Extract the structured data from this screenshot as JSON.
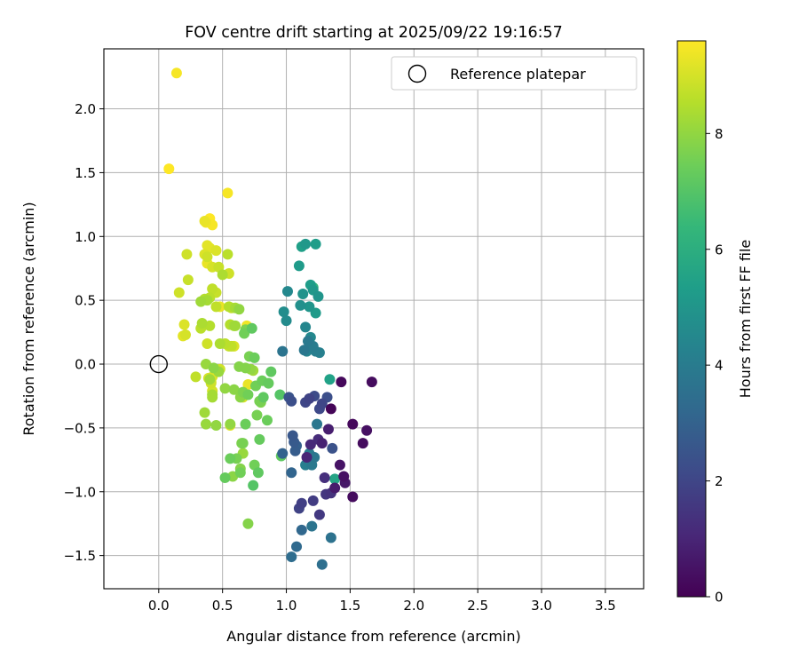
{
  "chart_data": {
    "type": "scatter",
    "title": "FOV centre drift starting at 2025/09/22 19:16:57",
    "xlabel": "Angular distance from reference (arcmin)",
    "ylabel": "Rotation from reference (arcmin)",
    "xlim": [
      -0.43,
      3.8
    ],
    "ylim": [
      -1.76,
      2.47
    ],
    "x_ticks": [
      0.0,
      0.5,
      1.0,
      1.5,
      2.0,
      2.5,
      3.0,
      3.5
    ],
    "x_tick_labels": [
      "0.0",
      "0.5",
      "1.0",
      "1.5",
      "2.0",
      "2.5",
      "3.0",
      "3.5"
    ],
    "y_ticks": [
      -1.5,
      -1.0,
      -0.5,
      0.0,
      0.5,
      1.0,
      1.5,
      2.0
    ],
    "y_tick_labels": [
      "−1.5",
      "−1.0",
      "−0.5",
      "0.0",
      "0.5",
      "1.0",
      "1.5",
      "2.0"
    ],
    "grid": true,
    "legend": {
      "position": "top-right",
      "entries": [
        "Reference platepar"
      ]
    },
    "reference_point": {
      "x": 0.0,
      "y": 0.0
    },
    "colorbar": {
      "label": "Hours from first FF file",
      "min": 0,
      "max": 9.6,
      "ticks": [
        0,
        2,
        4,
        6,
        8
      ],
      "tick_labels": [
        "0",
        "2",
        "4",
        "6",
        "8"
      ],
      "colormap": "viridis",
      "stops": [
        "#440154",
        "#482878",
        "#3e4a89",
        "#31688e",
        "#26828e",
        "#1f9e89",
        "#35b779",
        "#6ece58",
        "#b5de2b",
        "#fde725"
      ]
    },
    "series": [
      {
        "name": "points",
        "points": [
          [
            1.35,
            -0.35,
            0.1
          ],
          [
            1.43,
            -0.14,
            0.2
          ],
          [
            1.67,
            -0.14,
            0.3
          ],
          [
            1.52,
            -0.47,
            0.2
          ],
          [
            1.6,
            -0.62,
            0.3
          ],
          [
            1.63,
            -0.52,
            0.4
          ],
          [
            1.42,
            -0.79,
            0.5
          ],
          [
            1.45,
            -0.88,
            0.4
          ],
          [
            1.46,
            -0.93,
            0.6
          ],
          [
            1.52,
            -1.04,
            0.3
          ],
          [
            1.38,
            -0.97,
            0.7
          ],
          [
            1.33,
            -0.51,
            0.8
          ],
          [
            1.28,
            -0.62,
            0.9
          ],
          [
            1.16,
            -0.73,
            1.0
          ],
          [
            1.19,
            -0.63,
            1.1
          ],
          [
            1.25,
            -0.59,
            1.2
          ],
          [
            1.3,
            -0.89,
            1.3
          ],
          [
            1.35,
            -1.01,
            1.4
          ],
          [
            1.31,
            -1.02,
            1.5
          ],
          [
            1.26,
            -1.18,
            1.6
          ],
          [
            1.21,
            -1.07,
            1.7
          ],
          [
            1.12,
            -1.09,
            1.8
          ],
          [
            1.1,
            -1.13,
            1.9
          ],
          [
            1.15,
            -0.3,
            2.0
          ],
          [
            1.18,
            -0.27,
            1.9
          ],
          [
            1.26,
            -0.35,
            2.1
          ],
          [
            1.28,
            -0.31,
            2.0
          ],
          [
            1.22,
            -0.25,
            2.2
          ],
          [
            1.32,
            -0.26,
            2.3
          ],
          [
            1.36,
            -0.66,
            2.4
          ],
          [
            1.02,
            -0.26,
            2.5
          ],
          [
            1.04,
            -0.29,
            2.3
          ],
          [
            1.05,
            -0.56,
            2.6
          ],
          [
            1.06,
            -0.61,
            2.7
          ],
          [
            1.07,
            -0.68,
            2.8
          ],
          [
            1.08,
            -0.64,
            2.9
          ],
          [
            0.97,
            -0.7,
            3.0
          ],
          [
            1.04,
            -0.85,
            3.1
          ],
          [
            1.12,
            -1.3,
            3.2
          ],
          [
            1.08,
            -1.43,
            3.3
          ],
          [
            1.04,
            -1.51,
            3.4
          ],
          [
            1.28,
            -1.57,
            3.5
          ],
          [
            1.35,
            -1.36,
            3.6
          ],
          [
            1.2,
            -1.27,
            3.7
          ],
          [
            1.22,
            -0.73,
            3.8
          ],
          [
            1.2,
            -0.79,
            3.9
          ],
          [
            1.18,
            -0.7,
            4.0
          ],
          [
            1.15,
            -0.79,
            4.1
          ],
          [
            1.24,
            -0.47,
            3.8
          ],
          [
            0.97,
            0.1,
            3.7
          ],
          [
            1.14,
            0.11,
            3.8
          ],
          [
            1.17,
            0.18,
            3.9
          ],
          [
            1.21,
            0.14,
            4.0
          ],
          [
            1.23,
            0.1,
            4.1
          ],
          [
            1.26,
            0.09,
            4.2
          ],
          [
            1.16,
            0.1,
            4.3
          ],
          [
            1.15,
            0.29,
            4.4
          ],
          [
            1.19,
            0.21,
            4.5
          ],
          [
            1.0,
            0.34,
            4.6
          ],
          [
            0.98,
            0.41,
            4.7
          ],
          [
            1.01,
            0.57,
            4.5
          ],
          [
            1.11,
            0.46,
            4.8
          ],
          [
            1.13,
            0.55,
            4.9
          ],
          [
            1.18,
            0.45,
            5.0
          ],
          [
            1.21,
            0.58,
            5.1
          ],
          [
            1.23,
            0.4,
            5.2
          ],
          [
            1.25,
            0.53,
            5.0
          ],
          [
            1.19,
            0.62,
            5.3
          ],
          [
            1.1,
            0.77,
            5.2
          ],
          [
            1.12,
            0.92,
            5.4
          ],
          [
            1.15,
            0.94,
            5.1
          ],
          [
            1.23,
            0.94,
            5.3
          ],
          [
            1.34,
            -0.12,
            5.5
          ],
          [
            1.38,
            -0.9,
            5.6
          ],
          [
            1.21,
            0.6,
            6.3
          ],
          [
            0.96,
            -0.72,
            7.2
          ],
          [
            0.95,
            -0.24,
            7.0
          ],
          [
            0.88,
            -0.06,
            7.2
          ],
          [
            0.86,
            -0.15,
            7.3
          ],
          [
            0.81,
            -0.13,
            7.4
          ],
          [
            0.76,
            -0.17,
            7.5
          ],
          [
            0.79,
            -0.29,
            7.6
          ],
          [
            0.7,
            -0.24,
            7.5
          ],
          [
            0.66,
            -0.22,
            7.7
          ],
          [
            0.63,
            -0.02,
            7.8
          ],
          [
            0.59,
            -0.2,
            7.9
          ],
          [
            0.52,
            -0.19,
            8.0
          ],
          [
            0.47,
            -0.06,
            8.1
          ],
          [
            0.43,
            -0.03,
            7.9
          ],
          [
            0.4,
            -0.12,
            8.2
          ],
          [
            0.37,
            0.0,
            8.1
          ],
          [
            0.42,
            -0.26,
            8.3
          ],
          [
            0.45,
            -0.48,
            8.0
          ],
          [
            0.37,
            -0.47,
            8.1
          ],
          [
            0.36,
            -0.38,
            8.2
          ],
          [
            0.42,
            -0.24,
            8.3
          ],
          [
            0.52,
            -0.89,
            7.3
          ],
          [
            0.56,
            -0.74,
            7.4
          ],
          [
            0.61,
            -0.74,
            7.6
          ],
          [
            0.64,
            -0.82,
            7.8
          ],
          [
            0.64,
            -0.85,
            7.5
          ],
          [
            0.65,
            -0.62,
            7.7
          ],
          [
            0.66,
            -0.62,
            7.6
          ],
          [
            0.68,
            -0.47,
            7.4
          ],
          [
            0.75,
            -0.79,
            7.5
          ],
          [
            0.78,
            -0.85,
            7.2
          ],
          [
            0.74,
            -0.95,
            7.0
          ],
          [
            0.79,
            -0.59,
            7.3
          ],
          [
            0.82,
            -0.26,
            7.2
          ],
          [
            0.85,
            -0.44,
            7.4
          ],
          [
            0.77,
            -0.4,
            7.6
          ],
          [
            0.8,
            -0.3,
            7.7
          ],
          [
            0.7,
            -1.25,
            7.8
          ],
          [
            0.58,
            -0.88,
            7.9
          ],
          [
            0.56,
            -0.47,
            8.0
          ],
          [
            0.66,
            -0.7,
            8.1
          ],
          [
            0.64,
            -0.26,
            7.9
          ],
          [
            0.67,
            0.24,
            7.5
          ],
          [
            0.68,
            0.27,
            7.7
          ],
          [
            0.73,
            0.28,
            7.2
          ],
          [
            0.75,
            0.05,
            7.4
          ],
          [
            0.71,
            0.06,
            7.6
          ],
          [
            0.68,
            -0.03,
            7.8
          ],
          [
            0.72,
            -0.04,
            8.0
          ],
          [
            0.74,
            -0.05,
            8.2
          ],
          [
            0.59,
            0.3,
            8.3
          ],
          [
            0.56,
            0.31,
            8.5
          ],
          [
            0.63,
            0.43,
            8.0
          ],
          [
            0.6,
            0.44,
            8.3
          ],
          [
            0.55,
            0.45,
            8.5
          ],
          [
            0.57,
            0.14,
            8.7
          ],
          [
            0.52,
            0.16,
            8.6
          ],
          [
            0.48,
            0.16,
            8.4
          ],
          [
            0.45,
            0.45,
            8.7
          ],
          [
            0.4,
            0.3,
            8.5
          ],
          [
            0.33,
            0.28,
            8.6
          ],
          [
            0.34,
            0.32,
            8.4
          ],
          [
            0.38,
            0.5,
            8.3
          ],
          [
            0.33,
            0.49,
            8.2
          ],
          [
            0.36,
            0.51,
            8.5
          ],
          [
            0.4,
            0.52,
            8.6
          ],
          [
            0.42,
            0.59,
            8.7
          ],
          [
            0.45,
            0.56,
            8.8
          ],
          [
            0.5,
            0.7,
            8.4
          ],
          [
            0.38,
            0.16,
            8.9
          ],
          [
            0.41,
            -0.14,
            9.0
          ],
          [
            0.42,
            -0.1,
            9.1
          ],
          [
            0.6,
            0.3,
            8.2
          ],
          [
            0.66,
            -0.26,
            9.0
          ],
          [
            0.48,
            -0.04,
            8.9
          ],
          [
            0.55,
            0.14,
            8.8
          ],
          [
            0.59,
            0.14,
            9.1
          ],
          [
            0.54,
            0.86,
            8.6
          ],
          [
            0.38,
            0.84,
            8.9
          ],
          [
            0.36,
            0.86,
            9.1
          ],
          [
            0.4,
            0.91,
            9.2
          ],
          [
            0.38,
            0.79,
            9.3
          ],
          [
            0.42,
            0.76,
            9.0
          ],
          [
            0.45,
            0.89,
            9.1
          ],
          [
            0.47,
            0.76,
            8.8
          ],
          [
            0.22,
            0.86,
            8.9
          ],
          [
            0.23,
            0.66,
            8.8
          ],
          [
            0.16,
            0.56,
            8.9
          ],
          [
            0.2,
            0.31,
            9.1
          ],
          [
            0.21,
            0.23,
            9.0
          ],
          [
            0.19,
            0.22,
            9.2
          ],
          [
            0.29,
            -0.1,
            8.7
          ],
          [
            0.48,
            0.45,
            9.3
          ],
          [
            0.69,
            0.3,
            9.4
          ],
          [
            0.7,
            -0.16,
            9.3
          ],
          [
            0.56,
            -0.48,
            9.2
          ],
          [
            0.41,
            -0.15,
            8.9
          ],
          [
            0.39,
            -0.11,
            9.0
          ],
          [
            0.37,
            1.11,
            9.4
          ],
          [
            0.36,
            1.12,
            9.3
          ],
          [
            0.42,
            1.09,
            9.5
          ],
          [
            0.4,
            1.14,
            9.6
          ],
          [
            0.54,
            1.34,
            9.5
          ],
          [
            0.08,
            1.53,
            9.6
          ],
          [
            0.14,
            2.28,
            9.5
          ],
          [
            0.38,
            0.93,
            9.2
          ],
          [
            0.42,
            -0.21,
            9.0
          ],
          [
            0.55,
            0.71,
            8.9
          ],
          [
            0.57,
            0.44,
            8.7
          ]
        ]
      }
    ]
  }
}
